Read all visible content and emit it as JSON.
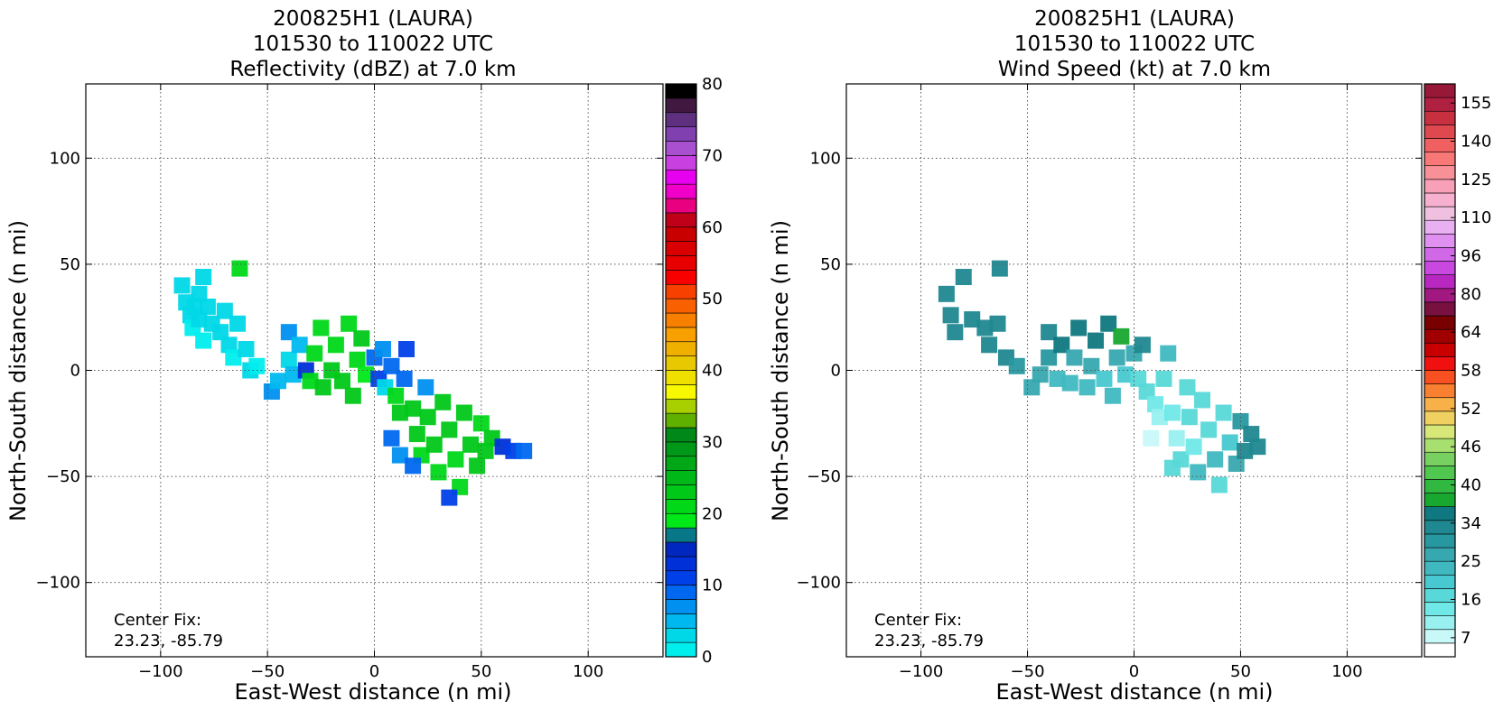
{
  "chart_data": [
    {
      "type": "heatmap",
      "title_lines": [
        "200825H1 (LAURA)",
        "101530 to 110022 UTC",
        "Reflectivity (dBZ) at 7.0 km"
      ],
      "xlabel": "East-West distance (n mi)",
      "ylabel": "North-South distance (n mi)",
      "xlim": [
        -135,
        135
      ],
      "ylim": [
        -135,
        135
      ],
      "xticks": [
        -100,
        -50,
        0,
        50,
        100
      ],
      "yticks": [
        -100,
        -50,
        0,
        50,
        100
      ],
      "grid": true,
      "annotation": [
        "Center Fix:",
        "23.23, -85.79"
      ],
      "colorbar": {
        "range": [
          0,
          80
        ],
        "ticks": [
          "0",
          "10",
          "20",
          "30",
          "40",
          "50",
          "60",
          "70",
          "80"
        ],
        "colors": [
          "#00eeee",
          "#00d8e8",
          "#00b8f0",
          "#0090f0",
          "#0068f0",
          "#0040e8",
          "#0030d8",
          "#0028c0",
          "#087888",
          "#00e818",
          "#00d818",
          "#00c818",
          "#00b818",
          "#00a818",
          "#009818",
          "#008818",
          "#60b000",
          "#a8d000",
          "#f8f800",
          "#f0e000",
          "#e8c800",
          "#f0b000",
          "#f8a000",
          "#f88000",
          "#f86000",
          "#f84000",
          "#f80000",
          "#e80000",
          "#d80000",
          "#c80000",
          "#c00018",
          "#e80080",
          "#f000c8",
          "#e800f0",
          "#c840e0",
          "#a850d0",
          "#8040b0",
          "#603080",
          "#401840",
          "#000000"
        ]
      },
      "series": [
        {
          "values": [
            [
              -90,
              40,
              2
            ],
            [
              -88,
              32,
              2
            ],
            [
              -86,
              26,
              2
            ],
            [
              -85,
              20,
              1
            ],
            [
              -84,
              30,
              3
            ],
            [
              -82,
              36,
              2
            ],
            [
              -82,
              24,
              2
            ],
            [
              -80,
              14,
              1
            ],
            [
              -80,
              44,
              3
            ],
            [
              -78,
              30,
              2
            ],
            [
              -76,
              22,
              2
            ],
            [
              -72,
              18,
              3
            ],
            [
              -70,
              28,
              3
            ],
            [
              -68,
              12,
              2
            ],
            [
              -66,
              6,
              1
            ],
            [
              -64,
              22,
              2
            ],
            [
              -63,
              48,
              20
            ],
            [
              -60,
              10,
              2
            ],
            [
              -58,
              0,
              3
            ],
            [
              -55,
              2,
              1
            ],
            [
              -48,
              -10,
              6
            ],
            [
              -45,
              -5,
              5
            ],
            [
              -40,
              5,
              3
            ],
            [
              -40,
              18,
              6
            ],
            [
              -38,
              -2,
              5
            ],
            [
              -35,
              12,
              5
            ],
            [
              -32,
              0,
              12
            ],
            [
              -30,
              -5,
              20
            ],
            [
              -28,
              8,
              20
            ],
            [
              -25,
              20,
              20
            ],
            [
              -24,
              -8,
              22
            ],
            [
              -20,
              0,
              22
            ],
            [
              -18,
              12,
              20
            ],
            [
              -15,
              -5,
              22
            ],
            [
              -12,
              22,
              20
            ],
            [
              -10,
              -12,
              22
            ],
            [
              -8,
              5,
              20
            ],
            [
              -6,
              15,
              22
            ],
            [
              -4,
              -2,
              18
            ],
            [
              0,
              6,
              8
            ],
            [
              2,
              -4,
              10
            ],
            [
              4,
              10,
              6
            ],
            [
              5,
              -8,
              2
            ],
            [
              8,
              2,
              8
            ],
            [
              10,
              -12,
              20
            ],
            [
              12,
              -20,
              22
            ],
            [
              14,
              -4,
              8
            ],
            [
              15,
              10,
              10
            ],
            [
              18,
              -18,
              22
            ],
            [
              20,
              -30,
              22
            ],
            [
              22,
              -40,
              20
            ],
            [
              24,
              -8,
              6
            ],
            [
              25,
              -22,
              22
            ],
            [
              28,
              -35,
              22
            ],
            [
              30,
              -48,
              20
            ],
            [
              32,
              -15,
              22
            ],
            [
              35,
              -28,
              22
            ],
            [
              38,
              -42,
              20
            ],
            [
              40,
              -55,
              20
            ],
            [
              42,
              -20,
              22
            ],
            [
              45,
              -35,
              22
            ],
            [
              48,
              -45,
              22
            ],
            [
              50,
              -25,
              20
            ],
            [
              52,
              -38,
              22
            ],
            [
              55,
              -32,
              22
            ],
            [
              60,
              -36,
              12
            ],
            [
              65,
              -38,
              10
            ],
            [
              70,
              -38,
              8
            ],
            [
              8,
              -32,
              8
            ],
            [
              12,
              -40,
              6
            ],
            [
              18,
              -45,
              8
            ],
            [
              35,
              -60,
              10
            ]
          ]
        }
      ]
    },
    {
      "type": "heatmap",
      "title_lines": [
        "200825H1 (LAURA)",
        "101530 to 110022 UTC",
        "Wind Speed (kt) at 7.0 km"
      ],
      "xlabel": "East-West distance (n mi)",
      "ylabel": "North-South distance (n mi)",
      "xlim": [
        -135,
        135
      ],
      "ylim": [
        -135,
        135
      ],
      "xticks": [
        -100,
        -50,
        0,
        50,
        100
      ],
      "yticks": [
        -100,
        -50,
        0,
        50,
        100
      ],
      "grid": true,
      "annotation": [
        "Center Fix:",
        "23.23, -85.79"
      ],
      "colorbar": {
        "range": [
          7,
          160
        ],
        "ticks": [
          "7",
          "16",
          "25",
          "34",
          "40",
          "46",
          "52",
          "58",
          "64",
          "80",
          "96",
          "110",
          "125",
          "140",
          "155"
        ],
        "colors": [
          "#ffffff",
          "#c8f8f8",
          "#98f0f0",
          "#70e8e8",
          "#58d8d8",
          "#48c8d0",
          "#40b8c0",
          "#38a8b0",
          "#2898a0",
          "#208890",
          "#107880",
          "#18a830",
          "#30b840",
          "#50c850",
          "#78d060",
          "#a8e070",
          "#d8e878",
          "#f0d060",
          "#f8b048",
          "#f88030",
          "#f85020",
          "#f01010",
          "#c80000",
          "#a00000",
          "#780000",
          "#781040",
          "#a01880",
          "#b828c0",
          "#c848e0",
          "#d068e8",
          "#e090f0",
          "#e8b0f0",
          "#f0c0e0",
          "#f8b0d0",
          "#f8a0b8",
          "#f89098",
          "#f87878",
          "#f06060",
          "#e04850",
          "#c83040",
          "#b02040",
          "#981838"
        ]
      },
      "series": [
        {
          "values": [
            [
              -88,
              36,
              40
            ],
            [
              -86,
              26,
              40
            ],
            [
              -84,
              18,
              42
            ],
            [
              -80,
              44,
              40
            ],
            [
              -76,
              24,
              42
            ],
            [
              -70,
              20,
              40
            ],
            [
              -68,
              12,
              42
            ],
            [
              -64,
              22,
              40
            ],
            [
              -63,
              48,
              40
            ],
            [
              -60,
              6,
              40
            ],
            [
              -55,
              2,
              38
            ],
            [
              -48,
              -8,
              34
            ],
            [
              -44,
              -2,
              36
            ],
            [
              -40,
              6,
              38
            ],
            [
              -40,
              18,
              42
            ],
            [
              -36,
              -4,
              30
            ],
            [
              -34,
              12,
              44
            ],
            [
              -30,
              -6,
              30
            ],
            [
              -28,
              6,
              36
            ],
            [
              -26,
              20,
              44
            ],
            [
              -22,
              -8,
              30
            ],
            [
              -20,
              2,
              34
            ],
            [
              -18,
              14,
              46
            ],
            [
              -14,
              -4,
              28
            ],
            [
              -12,
              22,
              46
            ],
            [
              -10,
              -12,
              30
            ],
            [
              -8,
              6,
              34
            ],
            [
              -6,
              16,
              48
            ],
            [
              -4,
              -2,
              28
            ],
            [
              0,
              8,
              34
            ],
            [
              2,
              -4,
              25
            ],
            [
              4,
              12,
              40
            ],
            [
              6,
              -10,
              25
            ],
            [
              10,
              -16,
              20
            ],
            [
              12,
              -22,
              16
            ],
            [
              14,
              -4,
              25
            ],
            [
              16,
              8,
              30
            ],
            [
              18,
              -20,
              18
            ],
            [
              20,
              -32,
              16
            ],
            [
              22,
              -42,
              22
            ],
            [
              25,
              -8,
              25
            ],
            [
              26,
              -22,
              22
            ],
            [
              28,
              -36,
              20
            ],
            [
              30,
              -48,
              30
            ],
            [
              32,
              -14,
              25
            ],
            [
              35,
              -28,
              22
            ],
            [
              38,
              -42,
              30
            ],
            [
              40,
              -54,
              25
            ],
            [
              42,
              -20,
              25
            ],
            [
              45,
              -34,
              28
            ],
            [
              48,
              -44,
              34
            ],
            [
              50,
              -24,
              38
            ],
            [
              52,
              -38,
              40
            ],
            [
              55,
              -30,
              42
            ],
            [
              58,
              -36,
              40
            ],
            [
              8,
              -32,
              12
            ],
            [
              12,
              -40,
              10
            ],
            [
              18,
              -46,
              22
            ]
          ]
        }
      ]
    }
  ]
}
